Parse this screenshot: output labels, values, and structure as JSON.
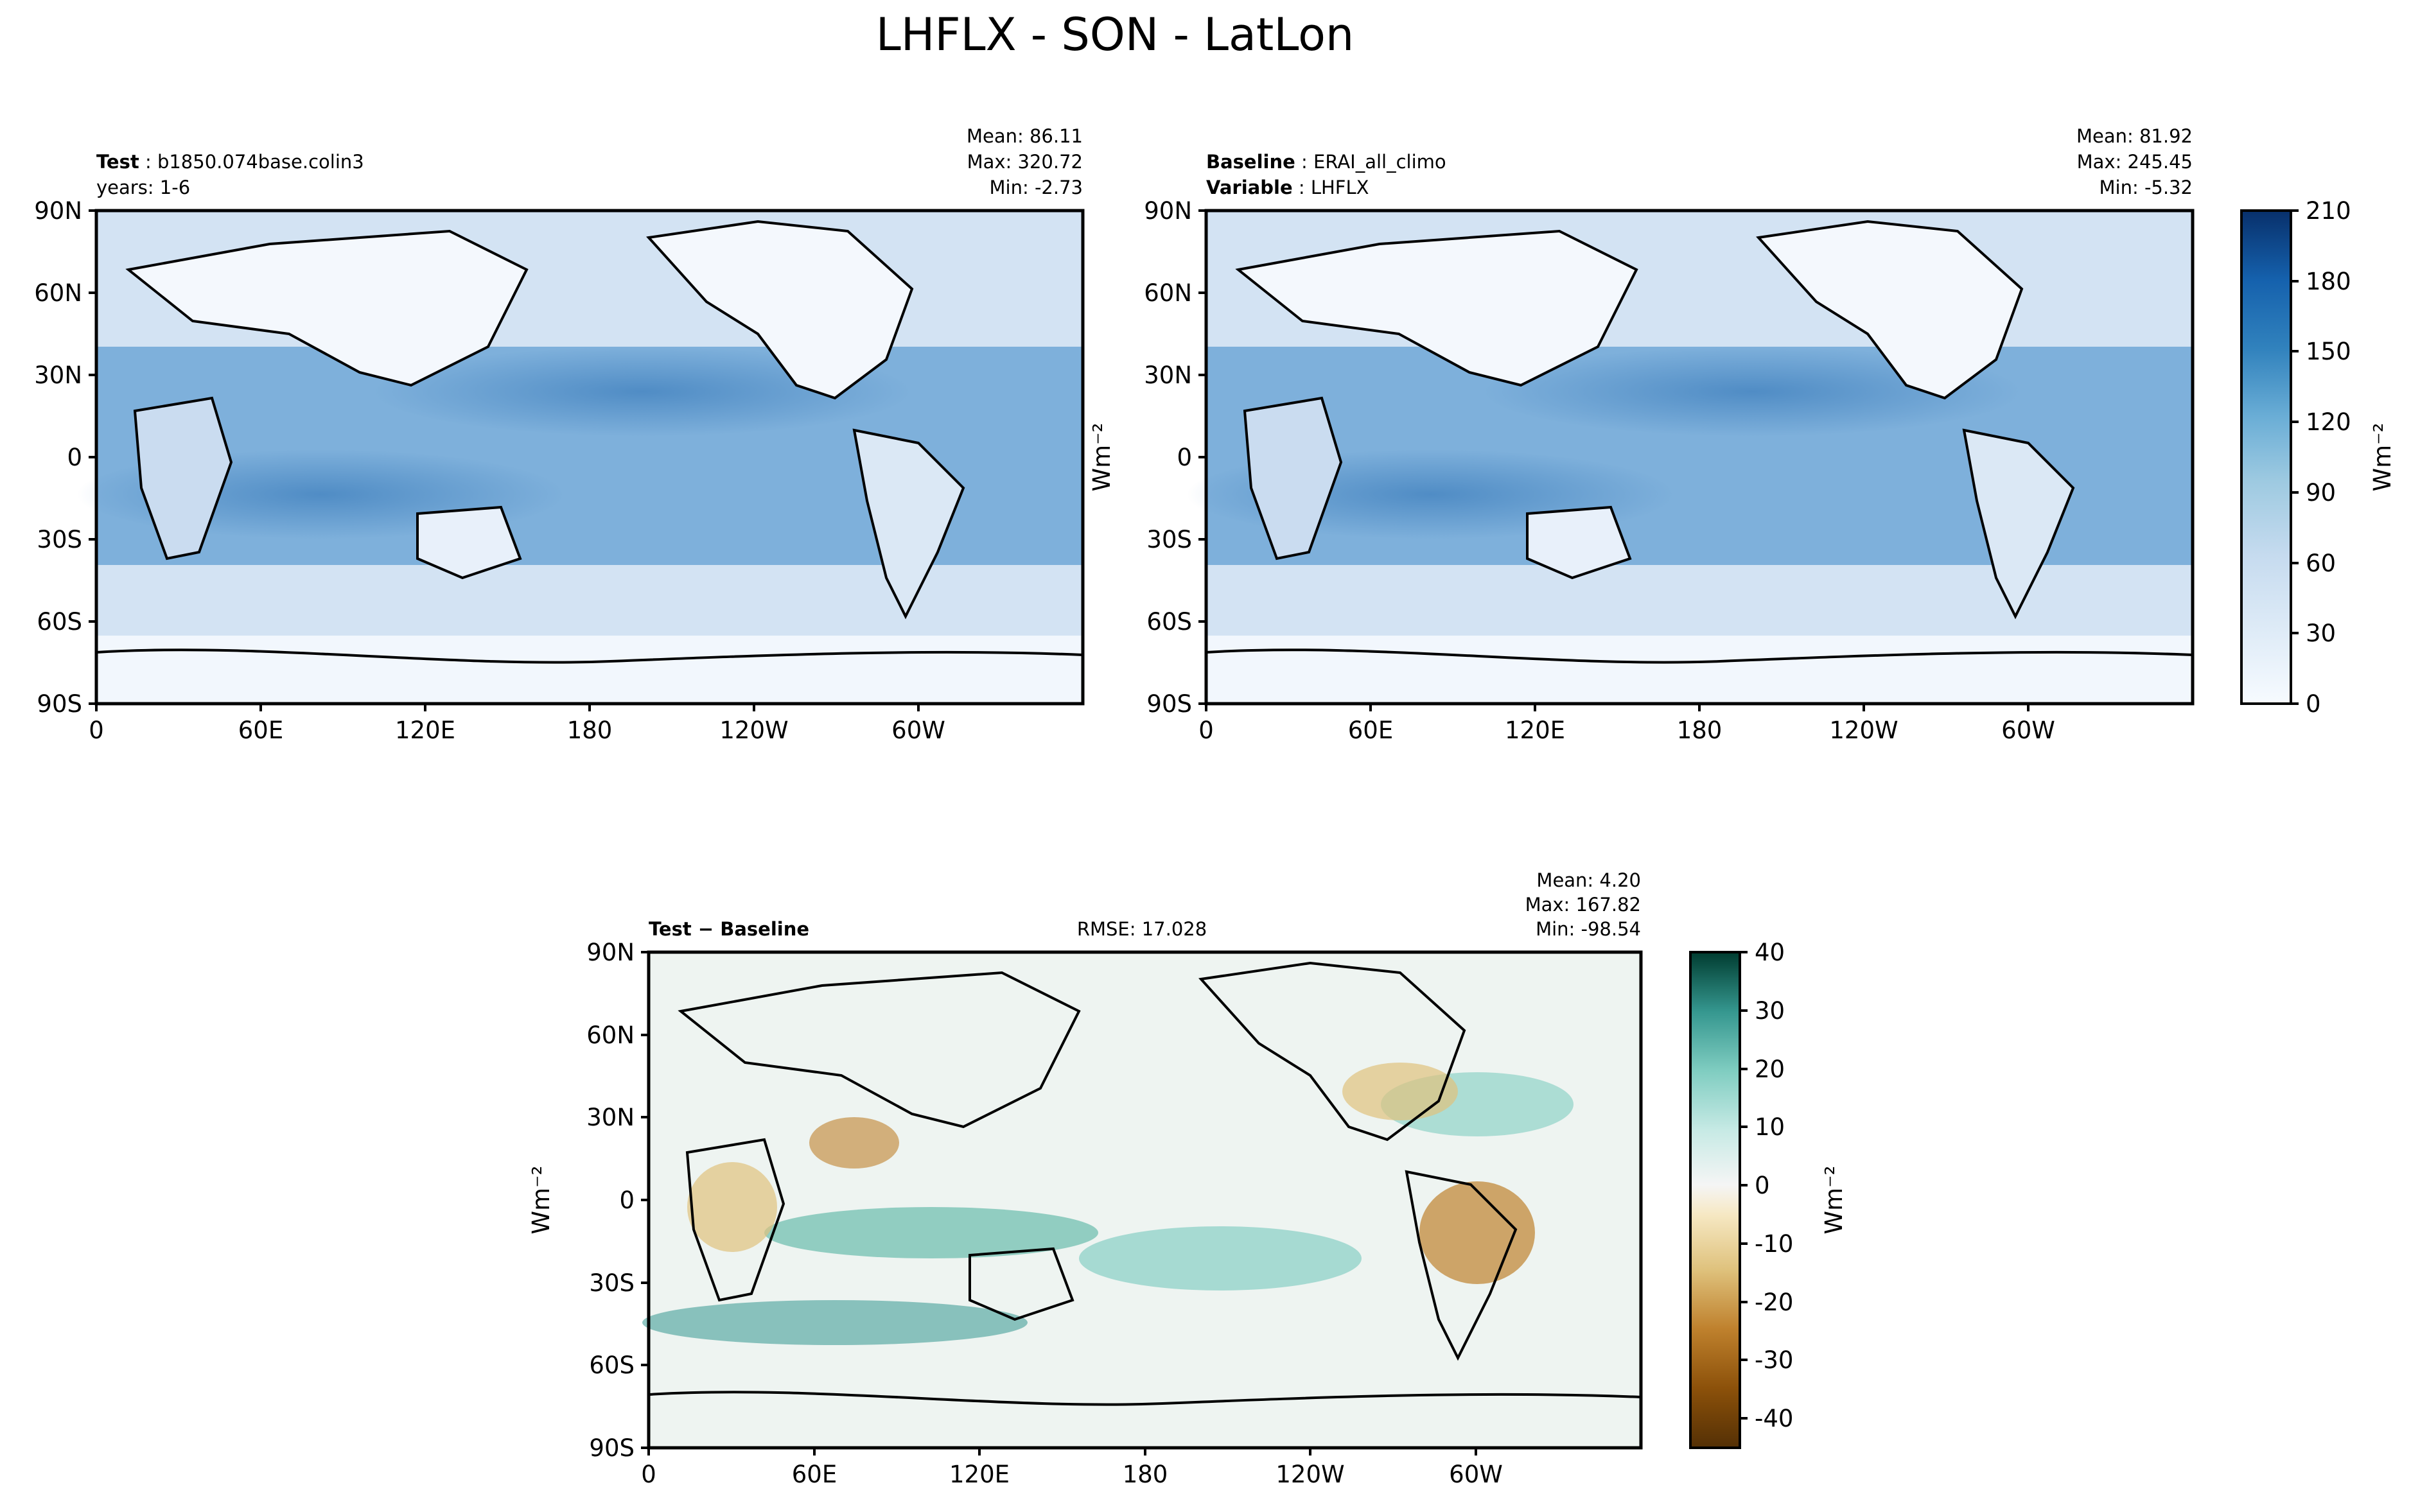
{
  "figure": {
    "title": "LHFLX - SON - LatLon"
  },
  "panels": {
    "test": {
      "label_bold": "Test",
      "label_value": "b1850.074base.colin3",
      "label2": "years: 1-6",
      "stats": {
        "mean": "Mean: 86.11",
        "max": "Max: 320.72",
        "min": "Min: -2.73"
      }
    },
    "baseline": {
      "label_bold": "Baseline",
      "label_value": "ERAI_all_climo",
      "label2_bold": "Variable",
      "label2_value": "LHFLX",
      "stats": {
        "mean": "Mean: 81.92",
        "max": "Max: 245.45",
        "min": "Min: -5.32"
      }
    },
    "diff": {
      "label_bold": "Test − Baseline",
      "rmse": "RMSE: 17.028",
      "stats": {
        "mean": "Mean:  4.20",
        "max": "Max: 167.82",
        "min": "Min: -98.54"
      }
    }
  },
  "units_label": "Wm⁻²",
  "chart_data": [
    {
      "type": "heatmap",
      "name": "test",
      "x_ticks": [
        "0",
        "60E",
        "120E",
        "180",
        "120W",
        "60W"
      ],
      "y_ticks": [
        "90N",
        "60N",
        "30N",
        "0",
        "30S",
        "60S",
        "90S"
      ],
      "xlim": [
        0,
        360
      ],
      "ylim": [
        -90,
        90
      ],
      "colorbar": {
        "ticks": [
          0,
          30,
          60,
          90,
          120,
          150,
          180,
          210
        ],
        "range": [
          0,
          210
        ],
        "colormap": "Blues"
      }
    },
    {
      "type": "heatmap",
      "name": "baseline",
      "x_ticks": [
        "0",
        "60E",
        "120E",
        "180",
        "120W",
        "60W"
      ],
      "y_ticks": [
        "90N",
        "60N",
        "30N",
        "0",
        "30S",
        "60S",
        "90S"
      ],
      "xlim": [
        0,
        360
      ],
      "ylim": [
        -90,
        90
      ],
      "colorbar": {
        "ticks": [
          0,
          30,
          60,
          90,
          120,
          150,
          180,
          210
        ],
        "range": [
          0,
          210
        ],
        "colormap": "Blues"
      }
    },
    {
      "type": "heatmap",
      "name": "diff",
      "x_ticks": [
        "0",
        "60E",
        "120E",
        "180",
        "120W",
        "60W"
      ],
      "y_ticks": [
        "90N",
        "60N",
        "30N",
        "0",
        "30S",
        "60S",
        "90S"
      ],
      "xlim": [
        0,
        360
      ],
      "ylim": [
        -90,
        90
      ],
      "colorbar": {
        "ticks": [
          -40,
          -30,
          -20,
          -10,
          0,
          10,
          20,
          30,
          40
        ],
        "range": [
          -45,
          40
        ],
        "colormap": "BrBG"
      }
    }
  ]
}
